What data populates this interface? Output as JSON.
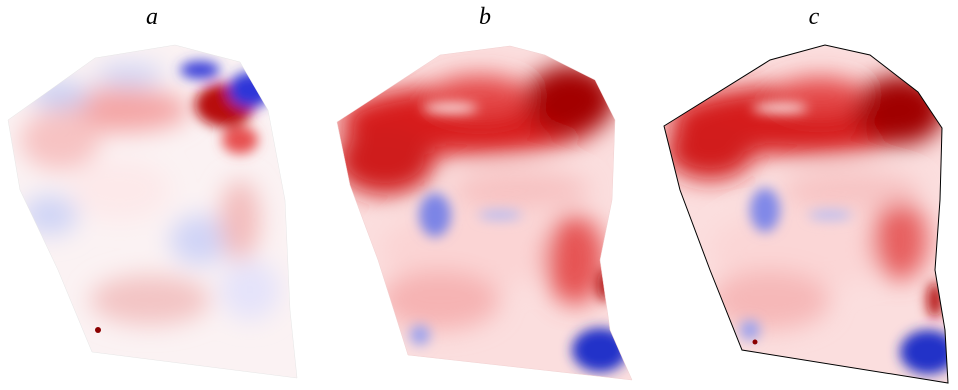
{
  "panels": [
    {
      "label": "a"
    },
    {
      "label": "b"
    },
    {
      "label": "c"
    }
  ],
  "colors": {
    "strong_red": "#9e0000",
    "red": "#e8302a",
    "light_red": "#f7b8b0",
    "white": "#ffffff",
    "light_blue": "#c8ccf5",
    "blue": "#2a2fd6",
    "outline": "#000000"
  }
}
